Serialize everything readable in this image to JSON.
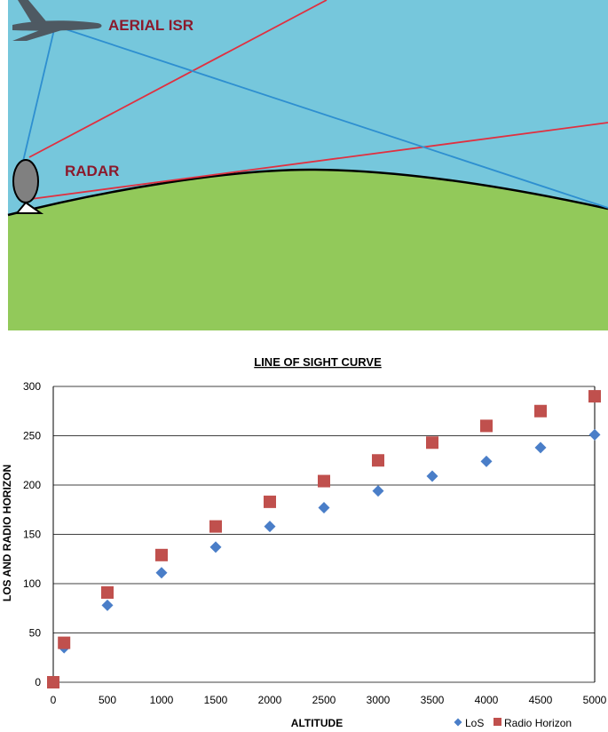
{
  "diagram": {
    "aerial_label": "AERIAL ISR",
    "radar_label": "RADAR",
    "colors": {
      "sky": "#76c7dc",
      "ground": "#92c95a",
      "rf_line": "#e03040",
      "los_line": "#2e8fd0",
      "label": "#8b1a2c"
    }
  },
  "chart_data": {
    "type": "scatter",
    "title": "LINE OF SIGHT CURVE",
    "xlabel": "ALTITUDE",
    "ylabel": "LOS AND RADIO HORIZON",
    "xlim": [
      0,
      5000
    ],
    "ylim": [
      0,
      300
    ],
    "xticks": [
      0,
      500,
      1000,
      1500,
      2000,
      2500,
      3000,
      3500,
      4000,
      4500,
      5000
    ],
    "yticks": [
      0,
      50,
      100,
      150,
      200,
      250,
      300
    ],
    "grid": true,
    "legend_position": "bottom-right",
    "series": [
      {
        "name": "LoS",
        "marker": "diamond",
        "color": "#4a7ec8",
        "x": [
          0,
          100,
          500,
          1000,
          1500,
          2000,
          2500,
          3000,
          3500,
          4000,
          4500,
          5000
        ],
        "y": [
          0,
          35,
          78,
          111,
          137,
          158,
          177,
          194,
          209,
          224,
          238,
          251
        ]
      },
      {
        "name": "Radio Horizon",
        "marker": "square",
        "color": "#c0504d",
        "x": [
          0,
          100,
          500,
          1000,
          1500,
          2000,
          2500,
          3000,
          3500,
          4000,
          4500,
          5000
        ],
        "y": [
          0,
          40,
          91,
          129,
          158,
          183,
          204,
          225,
          243,
          260,
          275,
          290
        ]
      }
    ]
  }
}
